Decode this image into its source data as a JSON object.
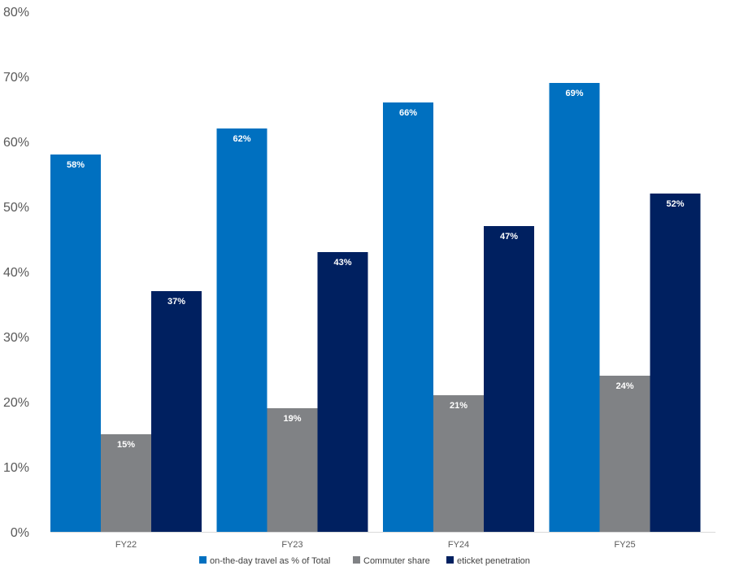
{
  "chart_data": {
    "type": "bar",
    "categories": [
      "FY22",
      "FY23",
      "FY24",
      "FY25"
    ],
    "series": [
      {
        "name": "on-the-day travel as % of Total",
        "values": [
          58,
          62,
          66,
          69
        ],
        "labels": [
          "58%",
          "62%",
          "66%",
          "69%"
        ],
        "color": "#0070C0"
      },
      {
        "name": "Commuter share",
        "values": [
          15,
          19,
          21,
          24
        ],
        "labels": [
          "15%",
          "19%",
          "21%",
          "24%"
        ],
        "color": "#808285"
      },
      {
        "name": "eticket penetration",
        "values": [
          37,
          43,
          47,
          52
        ],
        "labels": [
          "37%",
          "43%",
          "47%",
          "52%"
        ],
        "color": "#002060"
      }
    ],
    "yticks": [
      "0%",
      "10%",
      "20%",
      "30%",
      "40%",
      "50%",
      "60%",
      "70%",
      "80%"
    ],
    "ylim": [
      0,
      80
    ],
    "ylabel": "",
    "xlabel": "",
    "title": "",
    "grid": false,
    "legend_position": "bottom"
  }
}
